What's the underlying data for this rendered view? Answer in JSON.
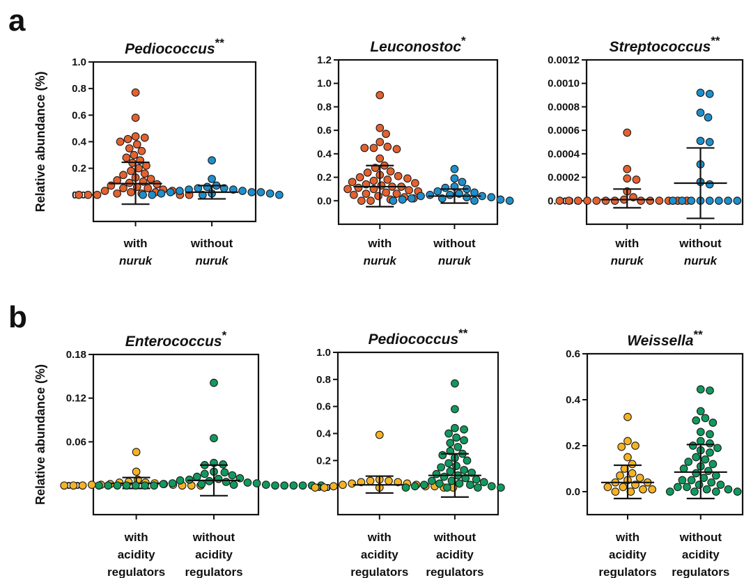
{
  "panel_letters": [
    "a",
    "b"
  ],
  "chart_data": [
    {
      "type": "scatter",
      "panel": "a",
      "title": "Pediococcus",
      "significance": "**",
      "ylabel": "Relative abundance (%)",
      "yticks": [
        0.0,
        0.2,
        0.4,
        0.6,
        0.8,
        1.0
      ],
      "tick_labels": [
        "0.0",
        "0.2",
        "0.4",
        "0.6",
        "0.8",
        "1.0"
      ],
      "ylim": [
        -0.2,
        1.0
      ],
      "categories": [
        {
          "lines": [
            "with",
            "nuruk"
          ],
          "italic": [
            false,
            true
          ]
        },
        {
          "lines": [
            "without",
            "nuruk"
          ],
          "italic": [
            false,
            true
          ]
        }
      ],
      "series": [
        {
          "color": "#E4622F",
          "values": [
            0.77,
            0.58,
            0.44,
            0.43,
            0.42,
            0.4,
            0.38,
            0.35,
            0.33,
            0.3,
            0.28,
            0.26,
            0.24,
            0.22,
            0.2,
            0.18,
            0.16,
            0.15,
            0.13,
            0.12,
            0.11,
            0.1,
            0.09,
            0.08,
            0.07,
            0.06,
            0.05,
            0.05,
            0.04,
            0.03,
            0.03,
            0.02,
            0.02,
            0.01,
            0.01,
            0.0,
            0.0,
            0.0,
            0.0,
            0.0
          ],
          "mean": 0.085,
          "err_low": -0.07,
          "err_high": 0.245
        },
        {
          "color": "#1F8FCB",
          "values": [
            0.26,
            0.12,
            0.07,
            0.06,
            0.05,
            0.05,
            0.04,
            0.04,
            0.03,
            0.03,
            0.02,
            0.02,
            0.02,
            0.01,
            0.01,
            0.01,
            0.0,
            0.0,
            0.0,
            0.0
          ],
          "mean": 0.02,
          "err_low": -0.03,
          "err_high": 0.07
        }
      ]
    },
    {
      "type": "scatter",
      "panel": "a",
      "title": "Leuconostoc",
      "significance": "*",
      "ylabel": "",
      "yticks": [
        0.0,
        0.2,
        0.4,
        0.6,
        0.8,
        1.0,
        1.2
      ],
      "tick_labels": [
        "0.0",
        "0.2",
        "0.4",
        "0.6",
        "0.8",
        "1.0",
        "1.2"
      ],
      "ylim": [
        -0.2,
        1.2
      ],
      "categories": [
        {
          "lines": [
            "with",
            "nuruk"
          ],
          "italic": [
            false,
            true
          ]
        },
        {
          "lines": [
            "without",
            "nuruk"
          ],
          "italic": [
            false,
            true
          ]
        }
      ],
      "series": [
        {
          "color": "#E4622F",
          "values": [
            0.9,
            0.62,
            0.57,
            0.5,
            0.46,
            0.45,
            0.45,
            0.44,
            0.36,
            0.3,
            0.28,
            0.25,
            0.24,
            0.22,
            0.21,
            0.2,
            0.19,
            0.18,
            0.17,
            0.16,
            0.15,
            0.14,
            0.13,
            0.12,
            0.12,
            0.11,
            0.1,
            0.1,
            0.09,
            0.08,
            0.07,
            0.06,
            0.06,
            0.05,
            0.04,
            0.03,
            0.02,
            0.01,
            0.0,
            0.0
          ],
          "mean": 0.12,
          "err_low": -0.05,
          "err_high": 0.3
        },
        {
          "color": "#1F8FCB",
          "values": [
            0.27,
            0.19,
            0.16,
            0.12,
            0.11,
            0.1,
            0.08,
            0.07,
            0.06,
            0.05,
            0.05,
            0.04,
            0.04,
            0.03,
            0.03,
            0.02,
            0.02,
            0.01,
            0.01,
            0.0,
            0.0,
            0.0
          ],
          "mean": 0.04,
          "err_low": -0.02,
          "err_high": 0.1
        }
      ]
    },
    {
      "type": "scatter",
      "panel": "a",
      "title": "Streptococcus",
      "significance": "**",
      "ylabel": "",
      "yticks": [
        0.0,
        0.0002,
        0.0004,
        0.0006,
        0.0008,
        0.001,
        0.0012
      ],
      "tick_labels": [
        "0.0000",
        "0.0002",
        "0.0004",
        "0.0006",
        "0.0008",
        "0.0010",
        "0.0012"
      ],
      "ylim": [
        -0.0002,
        0.0012
      ],
      "categories": [
        {
          "lines": [
            "with",
            "nuruk"
          ],
          "italic": [
            false,
            true
          ]
        },
        {
          "lines": [
            "without",
            "nuruk"
          ],
          "italic": [
            false,
            true
          ]
        }
      ],
      "series": [
        {
          "color": "#E4622F",
          "values": [
            0.00058,
            0.00027,
            0.00019,
            0.00018,
            8e-05,
            3e-05,
            1e-05,
            0.0,
            0.0,
            0.0,
            0.0,
            0.0,
            0.0,
            0.0,
            0.0,
            0.0,
            0.0,
            0.0,
            0.0,
            0.0
          ],
          "mean": 1e-05,
          "err_low": -6e-05,
          "err_high": 0.0001
        },
        {
          "color": "#1F8FCB",
          "values": [
            0.00092,
            0.00091,
            0.00075,
            0.00071,
            0.00051,
            0.0005,
            0.00031,
            0.00016,
            0.00014,
            0.0,
            0.0,
            0.0,
            0.0,
            0.0,
            0.0,
            0.0,
            0.0
          ],
          "mean": 0.00015,
          "err_low": -0.00015,
          "err_high": 0.00045
        }
      ]
    },
    {
      "type": "scatter",
      "panel": "b",
      "title": "Enterococcus",
      "significance": "*",
      "ylabel": "Relative abundance (%)",
      "yticks": [
        0.0,
        0.06,
        0.12,
        0.18
      ],
      "tick_labels": [
        "0.00",
        "0.06",
        "0.12",
        "0.18"
      ],
      "ylim": [
        -0.04,
        0.18
      ],
      "categories": [
        {
          "lines": [
            "with",
            "acidity",
            "regulators"
          ],
          "italic": [
            false,
            false,
            false
          ]
        },
        {
          "lines": [
            "without",
            "acidity",
            "regulators"
          ],
          "italic": [
            false,
            false,
            false
          ]
        }
      ],
      "series": [
        {
          "color": "#F5B324",
          "values": [
            0.046,
            0.019,
            0.008,
            0.005,
            0.004,
            0.004,
            0.003,
            0.002,
            0.002,
            0.001,
            0.001,
            0.001,
            0.0,
            0.0,
            0.0,
            0.0,
            0.0,
            0.0
          ],
          "mean": 0.003,
          "err_low": -0.004,
          "err_high": 0.011
        },
        {
          "color": "#119A5E",
          "values": [
            0.141,
            0.065,
            0.031,
            0.028,
            0.029,
            0.019,
            0.018,
            0.016,
            0.014,
            0.012,
            0.01,
            0.009,
            0.008,
            0.007,
            0.006,
            0.005,
            0.004,
            0.003,
            0.003,
            0.002,
            0.002,
            0.001,
            0.001,
            0.0,
            0.0,
            0.0,
            0.0,
            0.0,
            0.0,
            0.0,
            0.0,
            0.0,
            0.0,
            0.0,
            0.0,
            0.0
          ],
          "mean": 0.007,
          "err_low": -0.014,
          "err_high": 0.028
        }
      ]
    },
    {
      "type": "scatter",
      "panel": "b",
      "title": "Pediococcus",
      "significance": "**",
      "ylabel": "",
      "yticks": [
        0.0,
        0.2,
        0.4,
        0.6,
        0.8,
        1.0
      ],
      "tick_labels": [
        "0.0",
        "0.2",
        "0.4",
        "0.6",
        "0.8",
        "1.0"
      ],
      "ylim": [
        -0.2,
        1.0
      ],
      "categories": [
        {
          "lines": [
            "with",
            "acidity",
            "regulators"
          ],
          "italic": [
            false,
            false,
            false
          ]
        },
        {
          "lines": [
            "without",
            "acidity",
            "regulators"
          ],
          "italic": [
            false,
            false,
            false
          ]
        }
      ],
      "series": [
        {
          "color": "#F5B324",
          "values": [
            0.39,
            0.06,
            0.05,
            0.05,
            0.04,
            0.04,
            0.03,
            0.03,
            0.02,
            0.02,
            0.01,
            0.01,
            0.01,
            0.0,
            0.0,
            0.0,
            0.0,
            0.0
          ],
          "mean": 0.02,
          "err_low": -0.04,
          "err_high": 0.085
        },
        {
          "color": "#119A5E",
          "values": [
            0.77,
            0.58,
            0.44,
            0.43,
            0.4,
            0.37,
            0.35,
            0.33,
            0.3,
            0.27,
            0.25,
            0.24,
            0.22,
            0.2,
            0.18,
            0.16,
            0.15,
            0.13,
            0.12,
            0.11,
            0.1,
            0.09,
            0.08,
            0.07,
            0.06,
            0.05,
            0.05,
            0.04,
            0.03,
            0.03,
            0.02,
            0.02,
            0.01,
            0.01,
            0.0,
            0.0,
            0.0,
            0.0
          ],
          "mean": 0.09,
          "err_low": -0.07,
          "err_high": 0.25
        }
      ]
    },
    {
      "type": "scatter",
      "panel": "b",
      "title": "Weissella",
      "significance": "**",
      "ylabel": "",
      "yticks": [
        0.0,
        0.2,
        0.4,
        0.6
      ],
      "tick_labels": [
        "0.0",
        "0.2",
        "0.4",
        "0.6"
      ],
      "ylim": [
        -0.1,
        0.6
      ],
      "categories": [
        {
          "lines": [
            "with",
            "acidity",
            "regulators"
          ],
          "italic": [
            false,
            false,
            false
          ]
        },
        {
          "lines": [
            "without",
            "acidity",
            "regulators"
          ],
          "italic": [
            false,
            false,
            false
          ]
        }
      ],
      "series": [
        {
          "color": "#F5B324",
          "values": [
            0.325,
            0.22,
            0.2,
            0.195,
            0.15,
            0.12,
            0.1,
            0.08,
            0.07,
            0.06,
            0.05,
            0.04,
            0.04,
            0.03,
            0.02,
            0.02,
            0.01,
            0.01,
            0.0,
            0.0
          ],
          "mean": 0.04,
          "err_low": -0.03,
          "err_high": 0.115
        },
        {
          "color": "#119A5E",
          "values": [
            0.445,
            0.44,
            0.35,
            0.32,
            0.31,
            0.3,
            0.26,
            0.25,
            0.22,
            0.21,
            0.2,
            0.19,
            0.18,
            0.17,
            0.15,
            0.14,
            0.13,
            0.12,
            0.11,
            0.1,
            0.09,
            0.08,
            0.07,
            0.06,
            0.05,
            0.05,
            0.04,
            0.03,
            0.03,
            0.02,
            0.02,
            0.01,
            0.01,
            0.0,
            0.0,
            0.0,
            0.0
          ],
          "mean": 0.085,
          "err_low": -0.03,
          "err_high": 0.205
        }
      ]
    }
  ]
}
